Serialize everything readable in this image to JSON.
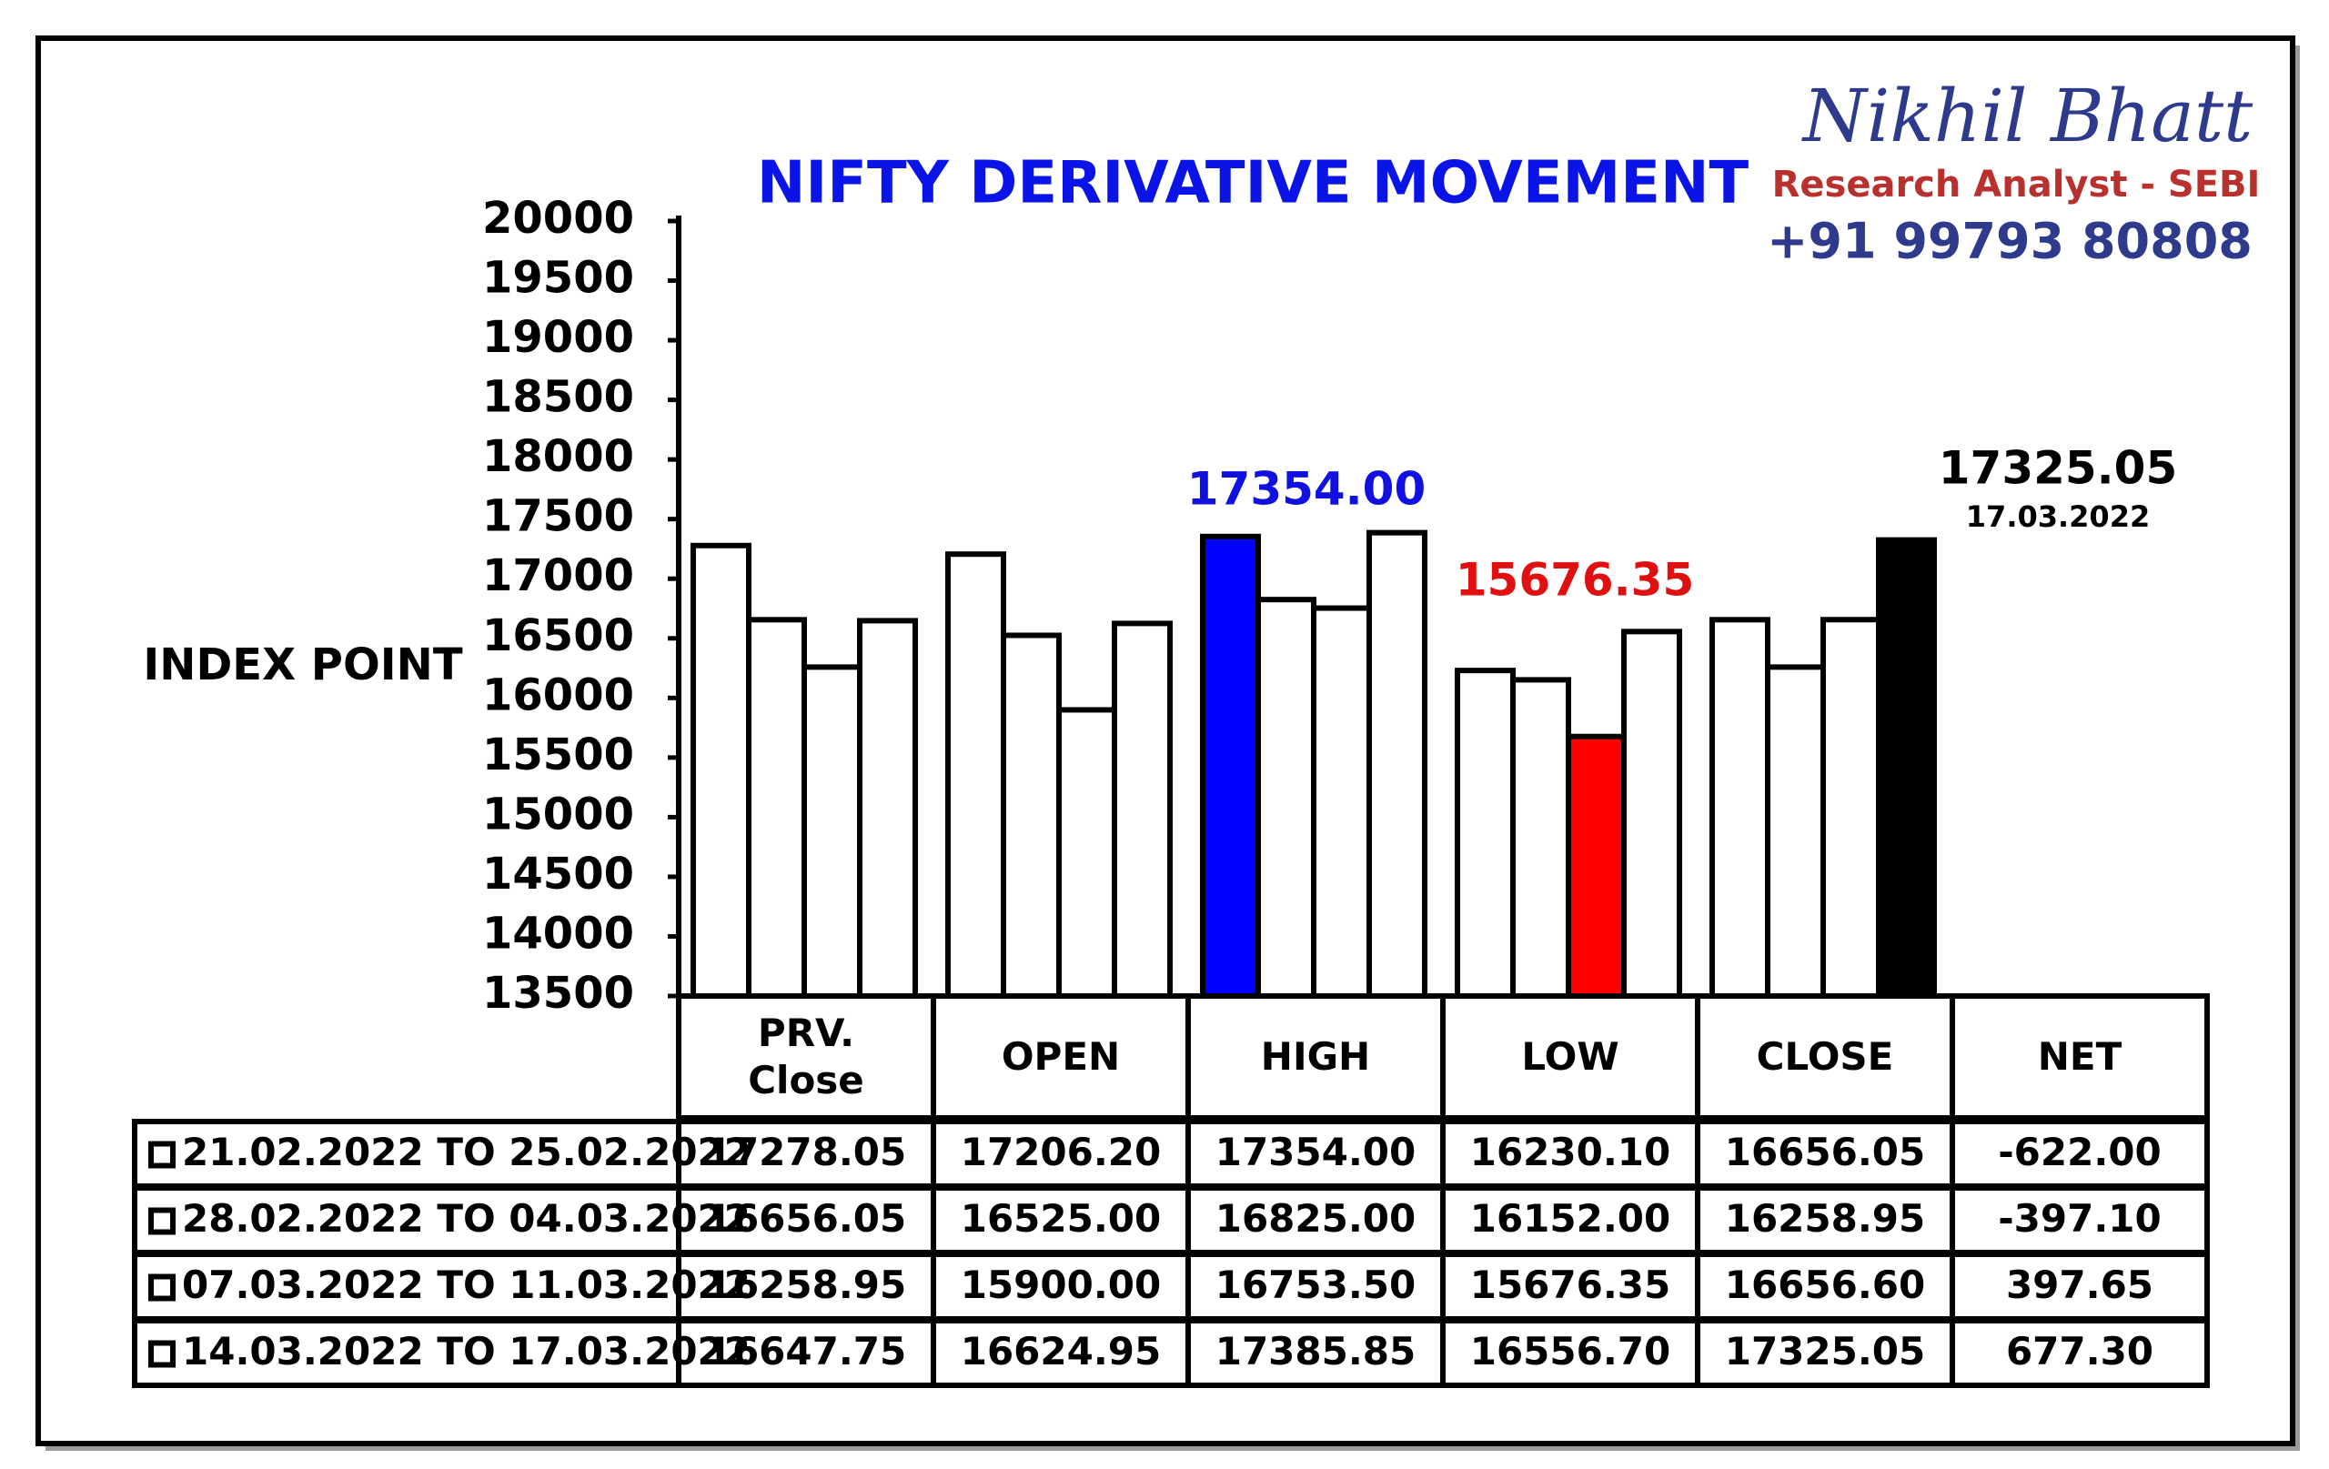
{
  "chart_data": {
    "type": "bar",
    "title": "NIFTY DERIVATIVE MOVEMENT",
    "y_label": "INDEX POINT",
    "categories": [
      "PRV. Close",
      "OPEN",
      "HIGH",
      "LOW",
      "CLOSE"
    ],
    "net_header": "NET",
    "ylim": [
      13500,
      20000
    ],
    "yticks": [
      13500,
      14000,
      14500,
      15000,
      15500,
      16000,
      16500,
      17000,
      17500,
      18000,
      18500,
      19000,
      19500,
      20000
    ],
    "series": [
      {
        "name": "21.02.2022 TO 25.02.2022",
        "values": [
          17278.05,
          17206.2,
          17354.0,
          16230.1,
          16656.05
        ],
        "value_labels": [
          "17278.05",
          "17206.20",
          "17354.00",
          "16230.10",
          "16656.05"
        ],
        "net": "-622.00",
        "colors": [
          "#ffffff",
          "#ffffff",
          "#0000ff",
          "#ffffff",
          "#ffffff"
        ]
      },
      {
        "name": "28.02.2022 TO 04.03.2022",
        "values": [
          16656.05,
          16525.0,
          16825.0,
          16152.0,
          16258.95
        ],
        "value_labels": [
          "16656.05",
          "16525.00",
          "16825.00",
          "16152.00",
          "16258.95"
        ],
        "net": "-397.10",
        "colors": [
          "#ffffff",
          "#ffffff",
          "#ffffff",
          "#ffffff",
          "#ffffff"
        ]
      },
      {
        "name": "07.03.2022 TO 11.03.2022",
        "values": [
          16258.95,
          15900.0,
          16753.5,
          15676.35,
          16656.6
        ],
        "value_labels": [
          "16258.95",
          "15900.00",
          "16753.50",
          "15676.35",
          "16656.60"
        ],
        "net": "397.65",
        "colors": [
          "#ffffff",
          "#ffffff",
          "#ffffff",
          "#ff0000",
          "#ffffff"
        ]
      },
      {
        "name": "14.03.2022 TO 17.03.2022",
        "values": [
          16647.75,
          16624.95,
          17385.85,
          16556.7,
          17325.05
        ],
        "value_labels": [
          "16647.75",
          "16624.95",
          "17385.85",
          "16556.70",
          "17325.05"
        ],
        "net": "677.30",
        "colors": [
          "#ffffff",
          "#ffffff",
          "#ffffff",
          "#ffffff",
          "#000000"
        ]
      }
    ],
    "annotations": [
      {
        "text": "17354.00",
        "color": "#1010e0"
      },
      {
        "text": "15676.35",
        "color": "#e01010"
      },
      {
        "text": "17325.05",
        "color": "#000000"
      },
      {
        "text": "17.03.2022",
        "color": "#000000"
      }
    ]
  },
  "branding": {
    "name": "Nikhil Bhatt",
    "role": "Research Analyst - SEBI",
    "phone": "+91 99793 80808"
  }
}
